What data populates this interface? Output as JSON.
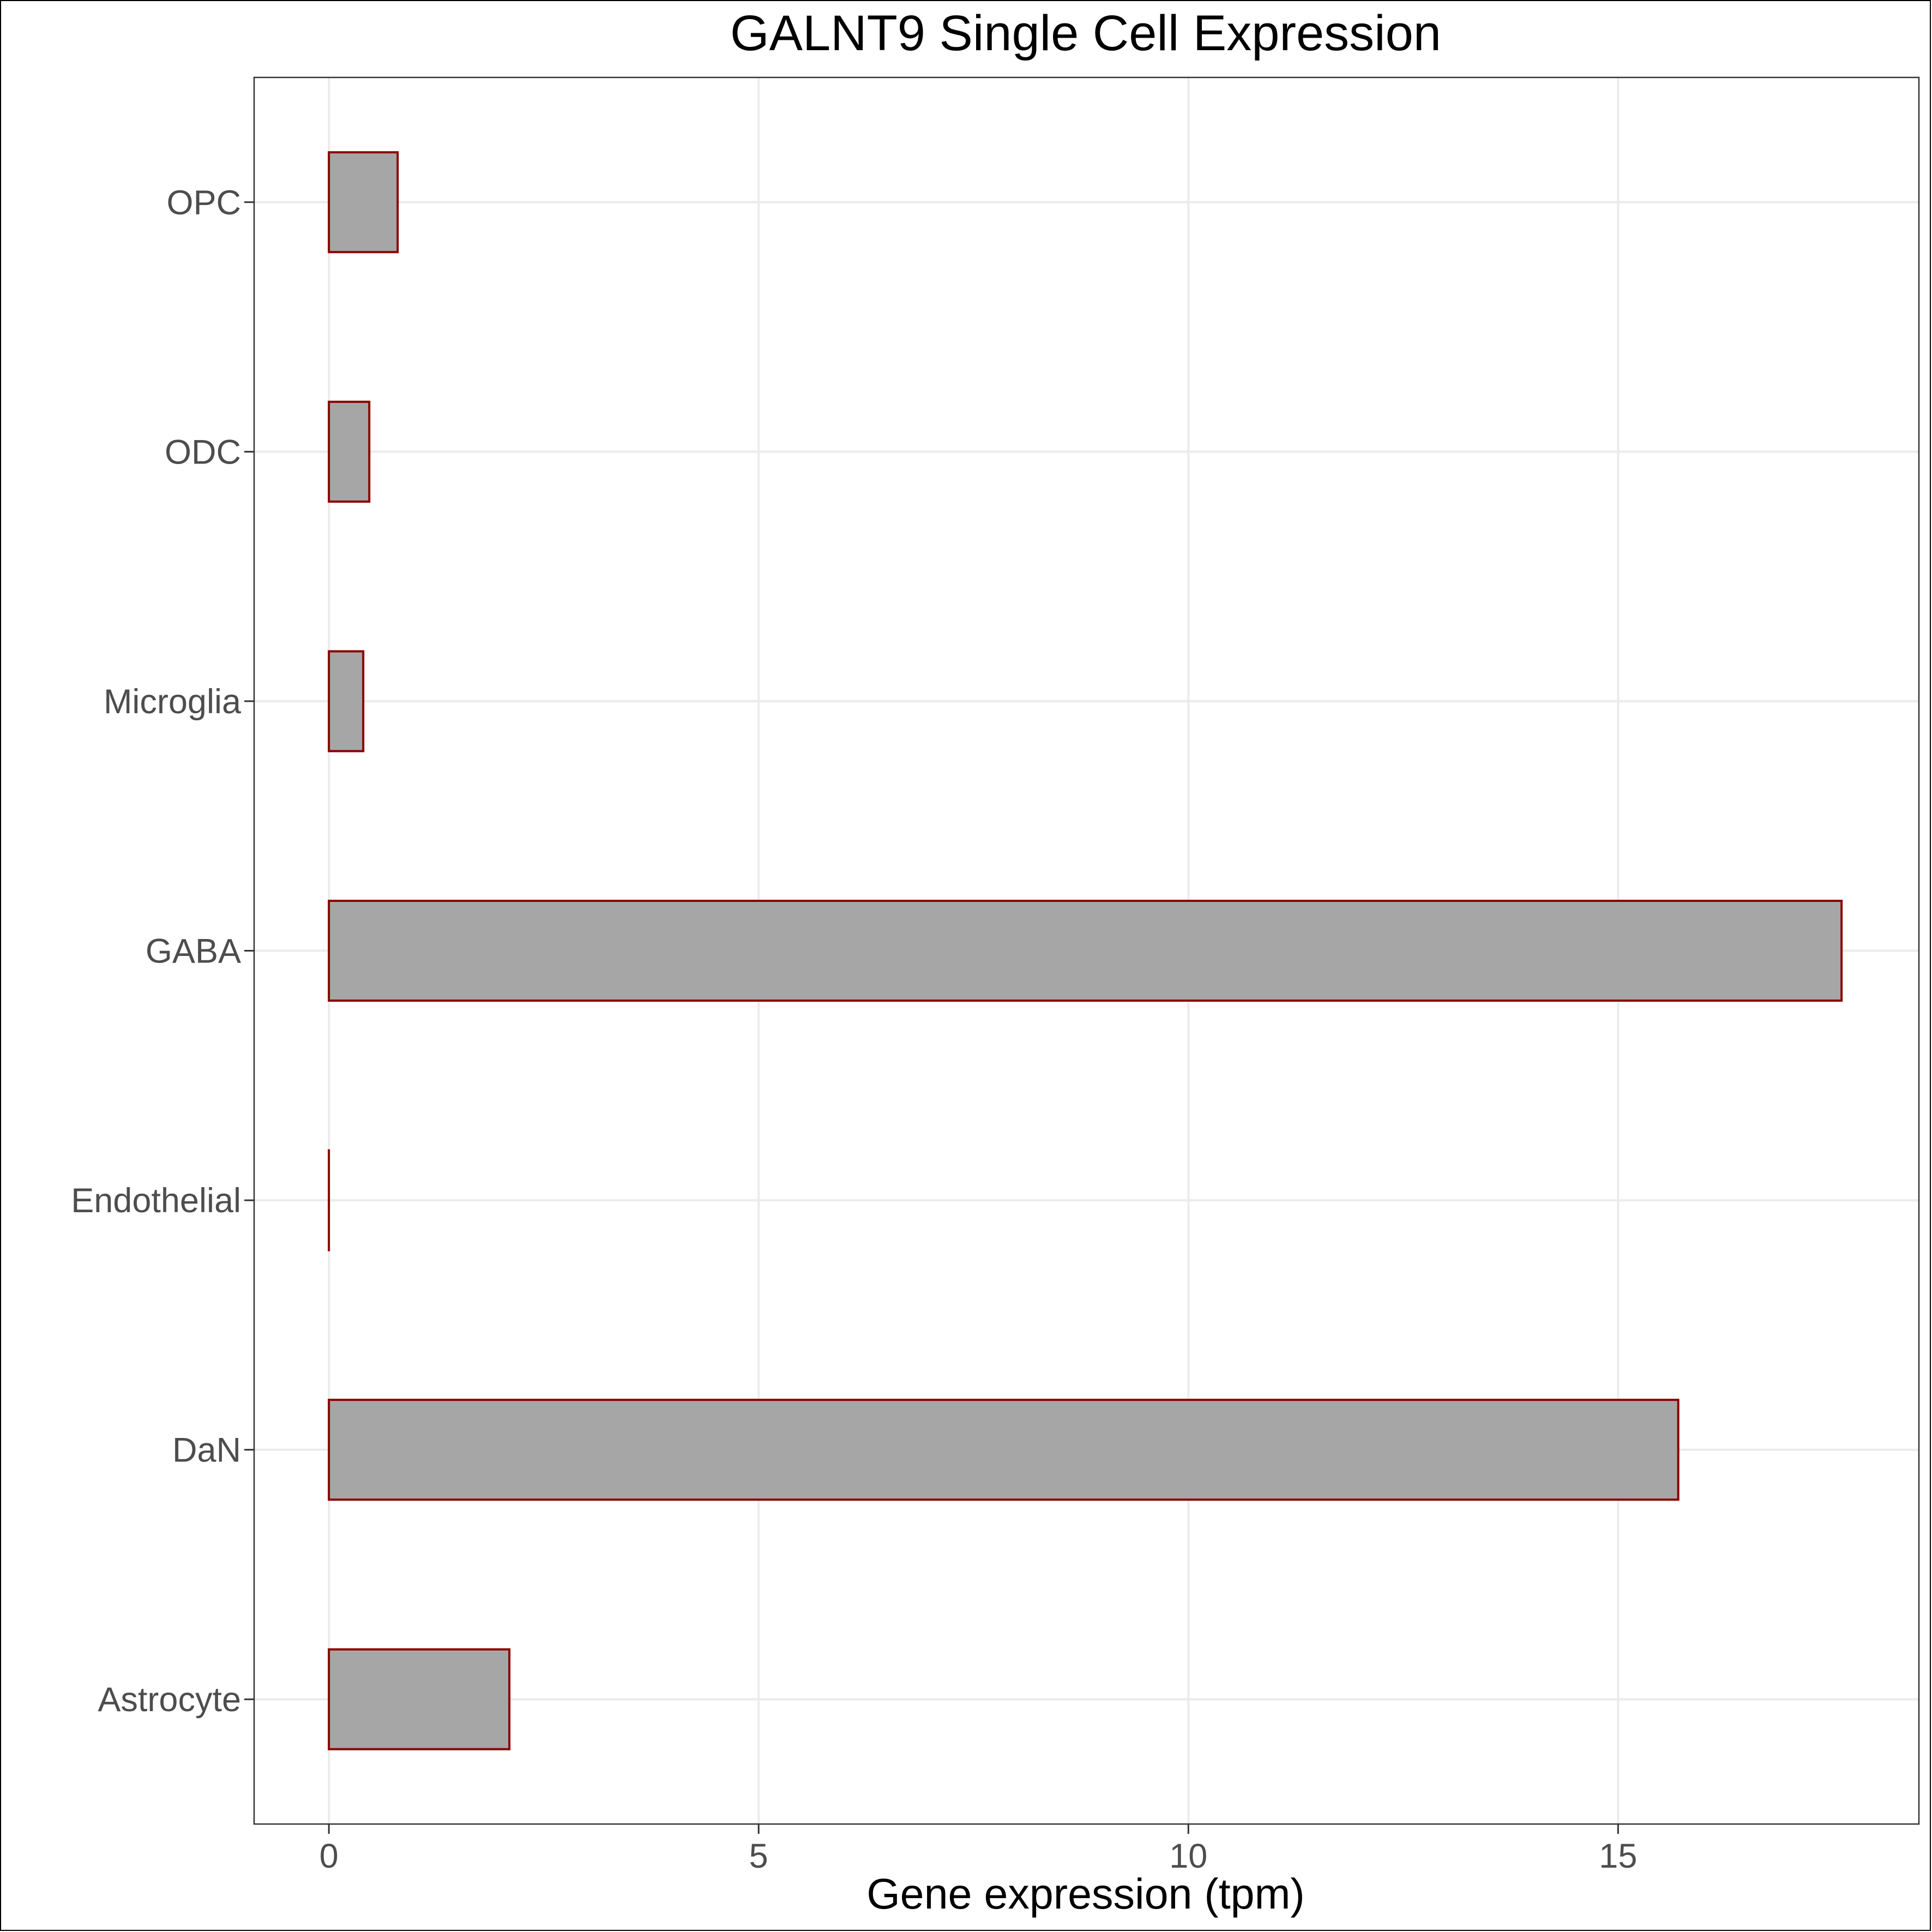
{
  "chart_data": {
    "type": "bar",
    "orientation": "horizontal",
    "title": "GALNT9 Single Cell Expression",
    "xlabel": "Gene expression (tpm)",
    "ylabel": "",
    "categories": [
      "Astrocyte",
      "DaN",
      "Endothelial",
      "GABA",
      "Microglia",
      "ODC",
      "OPC"
    ],
    "values": [
      2.1,
      15.7,
      0.0,
      17.6,
      0.4,
      0.47,
      0.8
    ],
    "xlim": [
      -0.87,
      18.5
    ],
    "xticks": [
      0,
      5,
      10,
      15
    ],
    "xtick_labels": [
      "0",
      "5",
      "10",
      "15"
    ],
    "grid": true,
    "colors": {
      "bar_fill": "#a6a6a6",
      "bar_stroke": "#8b0000",
      "grid": "#ebebeb",
      "panel_border": "#333333"
    }
  }
}
